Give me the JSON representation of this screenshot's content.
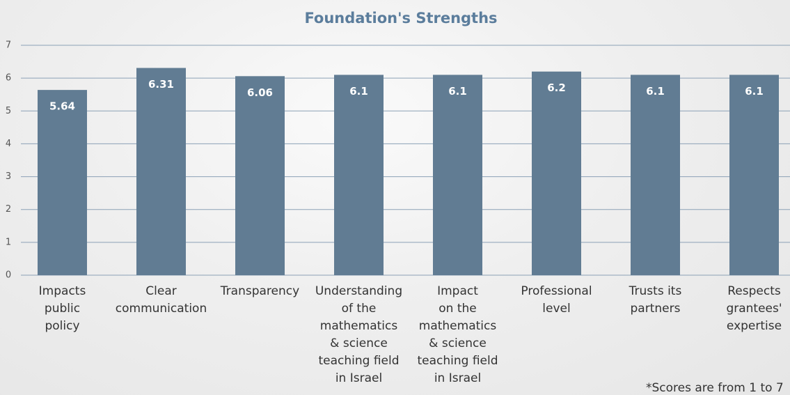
{
  "chart_data": {
    "type": "bar",
    "title": "Foundation's Strengths",
    "categories": [
      "Impacts\npublic\npolicy",
      "Clear\ncommunication",
      "Transparency",
      "Understanding\nof the\nmathematics\n& science\nteaching field\nin Israel",
      "Impact\non the\nmathematics\n& science\nteaching field\nin Israel",
      "Professional\nlevel",
      "Trusts its\npartners",
      "Respects\ngrantees'\nexpertise"
    ],
    "values": [
      5.64,
      6.31,
      6.06,
      6.1,
      6.1,
      6.2,
      6.1,
      6.1
    ],
    "color": "#617c93",
    "ylim": [
      0,
      7
    ],
    "yticks": [
      0,
      1,
      2,
      3,
      4,
      5,
      6,
      7
    ],
    "grid": true,
    "annotation": "*Scores are from 1 to 7"
  }
}
